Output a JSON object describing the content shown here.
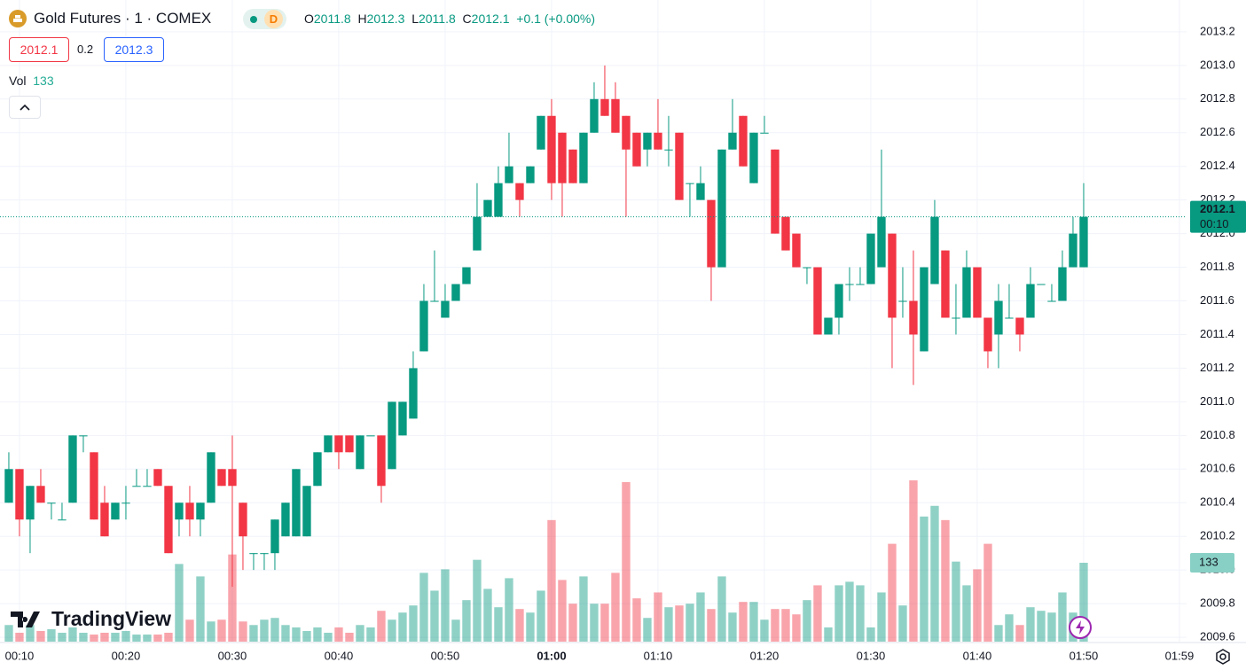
{
  "header": {
    "symbol": "Gold Futures · 1 · COMEX",
    "interval_badge": "D",
    "labels": [
      "O",
      "H",
      "L",
      "C"
    ],
    "change": "+0.1 (+0.00%)",
    "sell": "2012.1",
    "spread": "0.2",
    "buy": "2012.3",
    "volume_label": "Vol",
    "countdown": "00:10",
    "logo": "TradingView"
  },
  "chart_data": {
    "type": "candlestick",
    "up_color": "#089981",
    "down_color": "#f23645",
    "grid": true,
    "xlim": [
      -0.83,
      110.67
    ],
    "xticks": [
      {
        "value": 1,
        "label": "00:10"
      },
      {
        "value": 11,
        "label": "00:20"
      },
      {
        "value": 21,
        "label": "00:30"
      },
      {
        "value": 31,
        "label": "00:40"
      },
      {
        "value": 41,
        "label": "00:50"
      },
      {
        "value": 51,
        "label": "01:00"
      },
      {
        "value": 61,
        "label": "01:10"
      },
      {
        "value": 71,
        "label": "01:20"
      },
      {
        "value": 81,
        "label": "01:30"
      },
      {
        "value": 91,
        "label": "01:40"
      },
      {
        "value": 101,
        "label": "01:50"
      },
      {
        "value": 110,
        "label": "01:59"
      }
    ],
    "bold_xtick_index": 5,
    "ylim": [
      2009.574,
      2013.389
    ],
    "yticks": [
      2009.6,
      2009.8,
      {
        "value": 2010,
        "label": "2010.0"
      },
      2010.2,
      2010.4,
      2010.6,
      2010.8,
      {
        "value": 2011,
        "label": "2011.0"
      },
      2011.2,
      2011.4,
      2011.6,
      2011.8,
      {
        "value": 2012,
        "label": "2012.0"
      },
      2012.2,
      2012.4,
      2012.6,
      2012.8,
      {
        "value": 2013,
        "label": "2013.0"
      },
      2013.2
    ],
    "y2lim": [
      0,
      1082
    ],
    "ohlc": [
      [
        2010.4,
        2010.7,
        2010.4,
        2010.6
      ],
      [
        2010.6,
        2010.6,
        2010.2,
        2010.3
      ],
      [
        2010.3,
        2010.5,
        2010.1,
        2010.5
      ],
      [
        2010.5,
        2010.6,
        2010.4,
        2010.4
      ],
      [
        2010.4,
        2010.4,
        2010.3,
        2010.4
      ],
      [
        2010.3,
        2010.4,
        2010.3,
        2010.3
      ],
      [
        2010.4,
        2010.8,
        2010.4,
        2010.8
      ],
      [
        2010.8,
        2010.8,
        2010.7,
        2010.8
      ],
      [
        2010.7,
        2010.7,
        2010.3,
        2010.3
      ],
      [
        2010.4,
        2010.5,
        2010.2,
        2010.2
      ],
      [
        2010.3,
        2010.4,
        2010.3,
        2010.4
      ],
      [
        2010.4,
        2010.5,
        2010.3,
        2010.4
      ],
      [
        2010.5,
        2010.6,
        2010.5,
        2010.5
      ],
      [
        2010.5,
        2010.6,
        2010.5,
        2010.5
      ],
      [
        2010.6,
        2010.6,
        2010.5,
        2010.5
      ],
      [
        2010.5,
        2010.5,
        2010.1,
        2010.1
      ],
      [
        2010.3,
        2010.4,
        2010.2,
        2010.4
      ],
      [
        2010.4,
        2010.5,
        2010.2,
        2010.3
      ],
      [
        2010.3,
        2010.4,
        2010.2,
        2010.4
      ],
      [
        2010.4,
        2010.7,
        2010.4,
        2010.7
      ],
      [
        2010.6,
        2010.6,
        2010.5,
        2010.5
      ],
      [
        2010.6,
        2010.8,
        2009.9,
        2010.5
      ],
      [
        2010.4,
        2010.4,
        2010.0,
        2010.2
      ],
      [
        2010.1,
        2010.1,
        2010.0,
        2010.1
      ],
      [
        2010.1,
        2010.1,
        2010.0,
        2010.1
      ],
      [
        2010.1,
        2010.3,
        2010.0,
        2010.3
      ],
      [
        2010.2,
        2010.4,
        2010.2,
        2010.4
      ],
      [
        2010.2,
        2010.6,
        2010.2,
        2010.6
      ],
      [
        2010.2,
        2010.5,
        2010.2,
        2010.5
      ],
      [
        2010.5,
        2010.7,
        2010.5,
        2010.7
      ],
      [
        2010.7,
        2010.8,
        2010.7,
        2010.8
      ],
      [
        2010.8,
        2010.8,
        2010.6,
        2010.7
      ],
      [
        2010.8,
        2010.8,
        2010.7,
        2010.7
      ],
      [
        2010.6,
        2010.8,
        2010.6,
        2010.8
      ],
      [
        2010.8,
        2010.8,
        2010.8,
        2010.8
      ],
      [
        2010.8,
        2010.8,
        2010.4,
        2010.5
      ],
      [
        2010.6,
        2011.0,
        2010.6,
        2011.0
      ],
      [
        2010.8,
        2011.0,
        2010.8,
        2011.0
      ],
      [
        2010.9,
        2011.3,
        2010.9,
        2011.2
      ],
      [
        2011.3,
        2011.7,
        2011.3,
        2011.6
      ],
      [
        2011.6,
        2011.9,
        2011.6,
        2011.6
      ],
      [
        2011.5,
        2011.7,
        2011.5,
        2011.6
      ],
      [
        2011.6,
        2011.7,
        2011.6,
        2011.7
      ],
      [
        2011.7,
        2011.8,
        2011.7,
        2011.8
      ],
      [
        2011.9,
        2012.3,
        2011.9,
        2012.1
      ],
      [
        2012.1,
        2012.2,
        2012.1,
        2012.2
      ],
      [
        2012.1,
        2012.4,
        2012.1,
        2012.3
      ],
      [
        2012.3,
        2012.6,
        2012.3,
        2012.4
      ],
      [
        2012.3,
        2012.3,
        2012.1,
        2012.2
      ],
      [
        2012.3,
        2012.4,
        2012.3,
        2012.4
      ],
      [
        2012.5,
        2012.7,
        2012.5,
        2012.7
      ],
      [
        2012.7,
        2012.8,
        2012.2,
        2012.3
      ],
      [
        2012.6,
        2012.6,
        2012.1,
        2012.3
      ],
      [
        2012.5,
        2012.5,
        2012.3,
        2012.3
      ],
      [
        2012.3,
        2012.6,
        2012.3,
        2012.6
      ],
      [
        2012.6,
        2012.9,
        2012.6,
        2012.8
      ],
      [
        2012.8,
        2013.0,
        2012.7,
        2012.7
      ],
      [
        2012.8,
        2012.9,
        2012.6,
        2012.6
      ],
      [
        2012.7,
        2012.7,
        2012.1,
        2012.5
      ],
      [
        2012.6,
        2012.6,
        2012.4,
        2012.4
      ],
      [
        2012.5,
        2012.6,
        2012.4,
        2012.6
      ],
      [
        2012.6,
        2012.8,
        2012.5,
        2012.5
      ],
      [
        2012.5,
        2012.7,
        2012.4,
        2012.5
      ],
      [
        2012.6,
        2012.6,
        2012.2,
        2012.2
      ],
      [
        2012.3,
        2012.3,
        2012.1,
        2012.3
      ],
      [
        2012.2,
        2012.4,
        2012.2,
        2012.3
      ],
      [
        2012.2,
        2012.2,
        2011.6,
        2011.8
      ],
      [
        2011.8,
        2012.5,
        2011.8,
        2012.5
      ],
      [
        2012.5,
        2012.8,
        2012.5,
        2012.6
      ],
      [
        2012.7,
        2012.7,
        2012.4,
        2012.4
      ],
      [
        2012.3,
        2012.6,
        2012.3,
        2012.6
      ],
      [
        2012.6,
        2012.7,
        2012.6,
        2012.6
      ],
      [
        2012.5,
        2012.5,
        2012.0,
        2012.0
      ],
      [
        2012.1,
        2012.1,
        2011.9,
        2011.9
      ],
      [
        2012.0,
        2012.0,
        2011.8,
        2011.8
      ],
      [
        2011.8,
        2011.8,
        2011.7,
        2011.8
      ],
      [
        2011.8,
        2011.8,
        2011.4,
        2011.4
      ],
      [
        2011.4,
        2011.5,
        2011.4,
        2011.5
      ],
      [
        2011.5,
        2011.7,
        2011.4,
        2011.7
      ],
      [
        2011.7,
        2011.8,
        2011.6,
        2011.7
      ],
      [
        2011.7,
        2011.8,
        2011.7,
        2011.7
      ],
      [
        2011.7,
        2012.0,
        2011.7,
        2012.0
      ],
      [
        2011.8,
        2012.5,
        2011.8,
        2012.1
      ],
      [
        2012.0,
        2012.0,
        2011.2,
        2011.5
      ],
      [
        2011.6,
        2011.8,
        2011.5,
        2011.6
      ],
      [
        2011.6,
        2011.9,
        2011.1,
        2011.4
      ],
      [
        2011.3,
        2011.8,
        2011.3,
        2011.8
      ],
      [
        2011.7,
        2012.2,
        2011.7,
        2012.1
      ],
      [
        2011.9,
        2011.9,
        2011.5,
        2011.5
      ],
      [
        2011.5,
        2011.7,
        2011.4,
        2011.5
      ],
      [
        2011.5,
        2011.9,
        2011.5,
        2011.8
      ],
      [
        2011.8,
        2011.8,
        2011.5,
        2011.5
      ],
      [
        2011.5,
        2011.5,
        2011.2,
        2011.3
      ],
      [
        2011.4,
        2011.7,
        2011.2,
        2011.6
      ],
      [
        2011.5,
        2011.7,
        2011.5,
        2011.5
      ],
      [
        2011.5,
        2011.5,
        2011.3,
        2011.4
      ],
      [
        2011.5,
        2011.8,
        2011.5,
        2011.7
      ],
      [
        2011.7,
        2011.7,
        2011.7,
        2011.7
      ],
      [
        2011.6,
        2011.7,
        2011.6,
        2011.6
      ],
      [
        2011.6,
        2011.9,
        2011.6,
        2011.8
      ],
      [
        2011.8,
        2012.1,
        2011.8,
        2012.0
      ],
      [
        2011.8,
        2012.3,
        2011.8,
        2012.1
      ]
    ],
    "volume": [
      28,
      15,
      28,
      18,
      21,
      15,
      24,
      15,
      12,
      15,
      15,
      18,
      12,
      12,
      12,
      15,
      131,
      37,
      110,
      34,
      37,
      147,
      34,
      28,
      37,
      40,
      28,
      24,
      18,
      24,
      15,
      24,
      15,
      28,
      24,
      52,
      37,
      49,
      61,
      116,
      86,
      122,
      37,
      70,
      138,
      89,
      58,
      107,
      55,
      49,
      86,
      205,
      104,
      64,
      110,
      64,
      64,
      116,
      269,
      73,
      40,
      83,
      58,
      61,
      64,
      83,
      55,
      110,
      49,
      67,
      67,
      37,
      55,
      55,
      46,
      70,
      95,
      24,
      95,
      101,
      95,
      24,
      83,
      165,
      61,
      272,
      211,
      229,
      205,
      135,
      95,
      122,
      165,
      28,
      46,
      28,
      58,
      52,
      49,
      83,
      49,
      133
    ]
  }
}
